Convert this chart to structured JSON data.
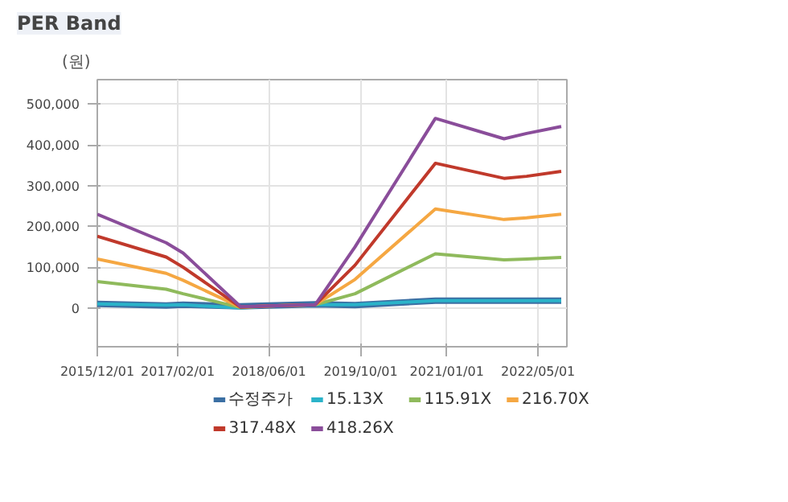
{
  "chart_data": {
    "type": "line",
    "title": "PER Band",
    "ylabel": "(원)",
    "x": [
      "2015-12",
      "2016-12",
      "2017-03",
      "2018-01",
      "2018-06",
      "2019-02",
      "2019-09",
      "2020-11",
      "2021-11",
      "2022-03",
      "2022-09"
    ],
    "xlim": [
      "2015-12-01",
      "2022-10-01"
    ],
    "xticks": [
      {
        "value": "2015-12-01",
        "label": "2015/12/01"
      },
      {
        "value": "2017-02-01",
        "label": "2017/02/01"
      },
      {
        "value": "2018-06-01",
        "label": "2018/06/01"
      },
      {
        "value": "2019-10-01",
        "label": "2019/10/01"
      },
      {
        "value": "2021-01-01",
        "label": "2021/01/01"
      },
      {
        "value": "2022-05-01",
        "label": "2022/05/01"
      }
    ],
    "ylim": [
      -95000,
      560000
    ],
    "yticks": [
      {
        "value": 0,
        "label": "0"
      },
      {
        "value": 100000,
        "label": "100,000"
      },
      {
        "value": 200000,
        "label": "200,000"
      },
      {
        "value": 300000,
        "label": "300,000"
      },
      {
        "value": 400000,
        "label": "400,000"
      },
      {
        "value": 500000,
        "label": "500,000"
      }
    ],
    "grid": true,
    "legend": "bottom",
    "line_style": "solid",
    "marker": "none",
    "series": [
      {
        "name": "수정주가",
        "color": "#3b6fa3",
        "values": [
          10000,
          6000,
          8000,
          4000,
          6000,
          9000,
          7000,
          18000,
          18000,
          18000,
          18000
        ]
      },
      {
        "name": "15.13X",
        "color": "#2ab3c9",
        "values": [
          10000,
          7000,
          8000,
          0,
          5000,
          8000,
          8000,
          18000,
          18000,
          18000,
          18000
        ]
      },
      {
        "name": "115.91X",
        "color": "#8fba5c",
        "values": [
          65000,
          46000,
          35000,
          1000,
          5000,
          8000,
          35000,
          133000,
          118000,
          120000,
          124000
        ]
      },
      {
        "name": "216.70X",
        "color": "#f5a742",
        "values": [
          120000,
          85000,
          68000,
          2000,
          5000,
          8000,
          70000,
          243000,
          217000,
          221000,
          230000
        ]
      },
      {
        "name": "317.48X",
        "color": "#c0392b",
        "values": [
          176000,
          125000,
          100000,
          2000,
          5000,
          8000,
          105000,
          355000,
          318000,
          323000,
          335000
        ]
      },
      {
        "name": "418.26X",
        "color": "#8a4d9a",
        "values": [
          230000,
          160000,
          135000,
          3000,
          5000,
          8000,
          150000,
          465000,
          415000,
          428000,
          445000
        ]
      }
    ]
  }
}
